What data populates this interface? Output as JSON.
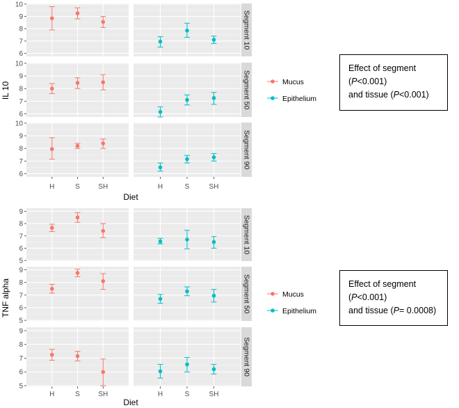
{
  "chart_data": [
    {
      "type": "scatter",
      "ylabel": "IL 10",
      "xlabel": "Diet",
      "categories": [
        "H",
        "S",
        "SH"
      ],
      "facet_columns": [
        "Mucus",
        "Epithelium"
      ],
      "legend": {
        "placement": "right",
        "entries": [
          "Mucus",
          "Epithelium"
        ]
      },
      "y_ticks": [
        "6",
        "7",
        "8",
        "9",
        "10"
      ],
      "ylim": [
        5.75,
        10.05
      ],
      "grid": true,
      "annotation": [
        "Effect of segment (",
        "P",
        "<0.001)",
        "and tissue (",
        "P",
        "<0.001)"
      ],
      "segments": [
        {
          "label": "Segment 10",
          "series": [
            {
              "name": "Mucus",
              "color": "#F8766D",
              "mean": [
                8.85,
                9.25,
                8.55
              ],
              "lo": [
                7.9,
                8.8,
                8.1
              ],
              "hi": [
                9.8,
                9.7,
                9.0
              ]
            },
            {
              "name": "Epithelium",
              "color": "#00BFC4",
              "mean": [
                6.95,
                7.85,
                7.1
              ],
              "lo": [
                6.5,
                7.3,
                6.8
              ],
              "hi": [
                7.35,
                8.45,
                7.4
              ]
            }
          ]
        },
        {
          "label": "Segment 50",
          "series": [
            {
              "name": "Mucus",
              "color": "#F8766D",
              "mean": [
                8.0,
                8.45,
                8.5
              ],
              "lo": [
                7.6,
                8.0,
                7.9
              ],
              "hi": [
                8.4,
                8.85,
                9.1
              ]
            },
            {
              "name": "Epithelium",
              "color": "#00BFC4",
              "mean": [
                6.15,
                7.1,
                7.25
              ],
              "lo": [
                5.75,
                6.7,
                6.75
              ],
              "hi": [
                6.55,
                7.5,
                7.7
              ]
            }
          ]
        },
        {
          "label": "Segment 90",
          "series": [
            {
              "name": "Mucus",
              "color": "#F8766D",
              "mean": [
                7.95,
                8.2,
                8.4
              ],
              "lo": [
                7.15,
                8.0,
                8.0
              ],
              "hi": [
                8.85,
                8.4,
                8.75
              ]
            },
            {
              "name": "Epithelium",
              "color": "#00BFC4",
              "mean": [
                6.5,
                7.15,
                7.3
              ],
              "lo": [
                6.2,
                6.85,
                7.0
              ],
              "hi": [
                6.85,
                7.45,
                7.6
              ]
            }
          ]
        }
      ]
    },
    {
      "type": "scatter",
      "ylabel": "TNF alpha",
      "xlabel": "Diet",
      "categories": [
        "H",
        "S",
        "SH"
      ],
      "facet_columns": [
        "Mucus",
        "Epithelium"
      ],
      "legend": {
        "placement": "right",
        "entries": [
          "Mucus",
          "Epithelium"
        ]
      },
      "y_ticks": [
        "5",
        "6",
        "7",
        "8",
        "9"
      ],
      "ylim": [
        4.95,
        9.25
      ],
      "grid": true,
      "annotation": [
        "Effect of segment (",
        "P",
        "<0.001)",
        "and tissue (",
        "P",
        "= 0.0008)"
      ],
      "segments": [
        {
          "label": "Segment 10",
          "series": [
            {
              "name": "Mucus",
              "color": "#F8766D",
              "mean": [
                7.65,
                8.5,
                7.4
              ],
              "lo": [
                7.35,
                8.1,
                6.85
              ],
              "hi": [
                7.95,
                8.9,
                8.0
              ]
            },
            {
              "name": "Epithelium",
              "color": "#00BFC4",
              "mean": [
                6.55,
                6.7,
                6.5
              ],
              "lo": [
                6.35,
                5.95,
                6.0
              ],
              "hi": [
                6.8,
                7.45,
                6.95
              ]
            }
          ]
        },
        {
          "label": "Segment 50",
          "series": [
            {
              "name": "Mucus",
              "color": "#F8766D",
              "mean": [
                7.5,
                8.75,
                8.1
              ],
              "lo": [
                7.15,
                8.45,
                7.45
              ],
              "hi": [
                7.85,
                9.05,
                8.7
              ]
            },
            {
              "name": "Epithelium",
              "color": "#00BFC4",
              "mean": [
                6.7,
                7.3,
                6.95
              ],
              "lo": [
                6.35,
                6.95,
                6.45
              ],
              "hi": [
                7.05,
                7.65,
                7.45
              ]
            }
          ]
        },
        {
          "label": "Segment 90",
          "series": [
            {
              "name": "Mucus",
              "color": "#F8766D",
              "mean": [
                7.25,
                7.15,
                6.0
              ],
              "lo": [
                6.85,
                6.8,
                5.0
              ],
              "hi": [
                7.65,
                7.5,
                6.95
              ]
            },
            {
              "name": "Epithelium",
              "color": "#00BFC4",
              "mean": [
                6.05,
                6.55,
                6.2
              ],
              "lo": [
                5.55,
                6.0,
                5.85
              ],
              "hi": [
                6.55,
                7.05,
                6.55
              ]
            }
          ]
        }
      ]
    }
  ]
}
